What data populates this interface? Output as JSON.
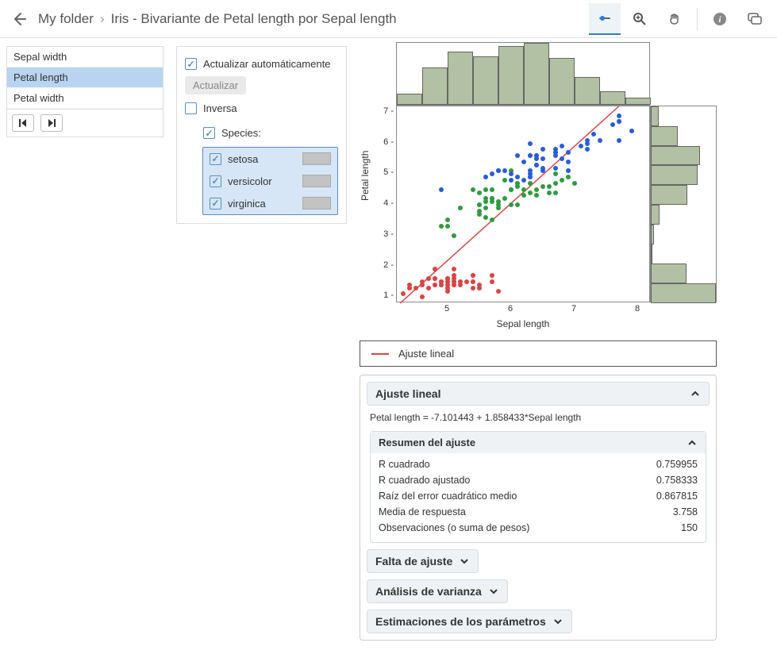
{
  "breadcrumb": {
    "folder": "My folder",
    "title": "Iris - Bivariante de Petal length por Sepal length"
  },
  "variables": {
    "items": [
      "Sepal width",
      "Petal length",
      "Petal width"
    ],
    "selected_index": 1
  },
  "options": {
    "auto_update": "Actualizar automáticamente",
    "update_btn": "Actualizar",
    "inverse": "Inversa",
    "species_label": "Species:",
    "species": [
      "setosa",
      "versicolor",
      "virginica"
    ]
  },
  "chart": {
    "type": "scatter-with-marginal-histograms",
    "xlabel": "Sepal length",
    "ylabel": "Petal length",
    "xlim": [
      4.2,
      8.2
    ],
    "ylim": [
      0.8,
      7.2
    ],
    "xticks": [
      5,
      6,
      7,
      8
    ],
    "yticks": [
      1,
      2,
      3,
      4,
      5,
      6,
      7
    ],
    "colors": {
      "setosa": "#d94545",
      "versicolor": "#2e9c3e",
      "virginica": "#2a5cd6",
      "hist_fill": "#b2c0a3",
      "fit_line": "#d94545"
    },
    "fit": {
      "slope": 1.858433,
      "intercept": -7.101443
    },
    "top_hist": {
      "bin_edges": [
        4.2,
        4.6,
        5.0,
        5.4,
        5.8,
        6.2,
        6.6,
        7.0,
        7.4,
        7.8,
        8.2
      ],
      "heights": [
        0.18,
        0.6,
        0.86,
        0.78,
        0.95,
        1.0,
        0.76,
        0.45,
        0.22,
        0.12
      ]
    },
    "right_hist": {
      "bin_edges": [
        0.8,
        1.44,
        2.08,
        2.72,
        3.36,
        4.0,
        4.64,
        5.28,
        5.92,
        6.56,
        7.2
      ],
      "heights": [
        1.0,
        0.55,
        0.02,
        0.05,
        0.14,
        0.56,
        0.72,
        0.75,
        0.42,
        0.12
      ]
    },
    "points": {
      "setosa": [
        [
          5.1,
          1.4
        ],
        [
          4.9,
          1.4
        ],
        [
          4.7,
          1.3
        ],
        [
          4.6,
          1.5
        ],
        [
          5.0,
          1.4
        ],
        [
          5.4,
          1.7
        ],
        [
          4.6,
          1.4
        ],
        [
          5.0,
          1.5
        ],
        [
          4.4,
          1.4
        ],
        [
          4.9,
          1.5
        ],
        [
          5.4,
          1.5
        ],
        [
          4.8,
          1.6
        ],
        [
          4.8,
          1.4
        ],
        [
          4.3,
          1.1
        ],
        [
          5.8,
          1.2
        ],
        [
          5.7,
          1.5
        ],
        [
          5.4,
          1.3
        ],
        [
          5.1,
          1.4
        ],
        [
          5.7,
          1.7
        ],
        [
          5.1,
          1.5
        ],
        [
          5.4,
          1.7
        ],
        [
          5.1,
          1.5
        ],
        [
          4.6,
          1.0
        ],
        [
          5.1,
          1.7
        ],
        [
          4.8,
          1.9
        ],
        [
          5.0,
          1.6
        ],
        [
          5.0,
          1.6
        ],
        [
          5.2,
          1.5
        ],
        [
          5.2,
          1.4
        ],
        [
          4.7,
          1.6
        ],
        [
          4.8,
          1.6
        ],
        [
          5.4,
          1.5
        ],
        [
          5.2,
          1.5
        ],
        [
          5.5,
          1.4
        ],
        [
          4.9,
          1.5
        ],
        [
          5.0,
          1.2
        ],
        [
          5.5,
          1.3
        ],
        [
          4.9,
          1.4
        ],
        [
          4.4,
          1.3
        ],
        [
          5.1,
          1.5
        ],
        [
          5.0,
          1.3
        ],
        [
          4.5,
          1.3
        ],
        [
          4.4,
          1.3
        ],
        [
          5.0,
          1.6
        ],
        [
          5.1,
          1.9
        ],
        [
          4.8,
          1.4
        ],
        [
          5.1,
          1.6
        ],
        [
          4.6,
          1.4
        ],
        [
          5.3,
          1.5
        ],
        [
          5.0,
          1.4
        ]
      ],
      "versicolor": [
        [
          7.0,
          4.7
        ],
        [
          6.4,
          4.5
        ],
        [
          6.9,
          4.9
        ],
        [
          5.5,
          4.0
        ],
        [
          6.5,
          4.6
        ],
        [
          5.7,
          4.5
        ],
        [
          6.3,
          4.7
        ],
        [
          4.9,
          3.3
        ],
        [
          6.6,
          4.6
        ],
        [
          5.2,
          3.9
        ],
        [
          5.0,
          3.5
        ],
        [
          5.9,
          4.2
        ],
        [
          6.0,
          4.0
        ],
        [
          6.1,
          4.7
        ],
        [
          5.6,
          3.6
        ],
        [
          6.7,
          4.4
        ],
        [
          5.6,
          4.5
        ],
        [
          5.8,
          4.1
        ],
        [
          6.2,
          4.5
        ],
        [
          5.6,
          3.9
        ],
        [
          5.9,
          4.8
        ],
        [
          6.1,
          4.0
        ],
        [
          6.3,
          4.9
        ],
        [
          6.1,
          4.7
        ],
        [
          6.4,
          4.3
        ],
        [
          6.6,
          4.4
        ],
        [
          6.8,
          4.8
        ],
        [
          6.7,
          5.0
        ],
        [
          6.0,
          4.5
        ],
        [
          5.7,
          3.5
        ],
        [
          5.5,
          3.8
        ],
        [
          5.5,
          3.7
        ],
        [
          5.8,
          3.9
        ],
        [
          6.0,
          5.1
        ],
        [
          5.4,
          4.5
        ],
        [
          6.0,
          4.5
        ],
        [
          6.7,
          4.7
        ],
        [
          6.3,
          4.4
        ],
        [
          5.6,
          4.1
        ],
        [
          5.5,
          4.0
        ],
        [
          5.5,
          4.4
        ],
        [
          6.1,
          4.6
        ],
        [
          5.8,
          4.0
        ],
        [
          5.0,
          3.3
        ],
        [
          5.6,
          4.2
        ],
        [
          5.7,
          4.2
        ],
        [
          5.7,
          4.2
        ],
        [
          6.2,
          4.3
        ],
        [
          5.1,
          3.0
        ],
        [
          5.7,
          4.1
        ]
      ],
      "virginica": [
        [
          6.3,
          6.0
        ],
        [
          5.8,
          5.1
        ],
        [
          7.1,
          5.9
        ],
        [
          6.3,
          5.6
        ],
        [
          6.5,
          5.8
        ],
        [
          7.6,
          6.6
        ],
        [
          4.9,
          4.5
        ],
        [
          7.3,
          6.3
        ],
        [
          6.7,
          5.8
        ],
        [
          7.2,
          6.1
        ],
        [
          6.5,
          5.1
        ],
        [
          6.4,
          5.3
        ],
        [
          6.8,
          5.5
        ],
        [
          5.7,
          5.0
        ],
        [
          5.8,
          5.1
        ],
        [
          6.4,
          5.3
        ],
        [
          6.5,
          5.5
        ],
        [
          7.7,
          6.7
        ],
        [
          7.7,
          6.9
        ],
        [
          6.0,
          5.0
        ],
        [
          6.9,
          5.7
        ],
        [
          5.6,
          4.9
        ],
        [
          7.7,
          6.7
        ],
        [
          6.3,
          4.9
        ],
        [
          6.7,
          5.7
        ],
        [
          7.2,
          6.0
        ],
        [
          6.2,
          4.8
        ],
        [
          6.1,
          4.9
        ],
        [
          6.4,
          5.6
        ],
        [
          7.2,
          5.8
        ],
        [
          7.4,
          6.1
        ],
        [
          7.9,
          6.4
        ],
        [
          6.4,
          5.6
        ],
        [
          6.3,
          5.1
        ],
        [
          6.1,
          5.6
        ],
        [
          7.7,
          6.1
        ],
        [
          6.3,
          5.6
        ],
        [
          6.4,
          5.5
        ],
        [
          6.0,
          4.8
        ],
        [
          6.9,
          5.4
        ],
        [
          6.7,
          5.6
        ],
        [
          6.9,
          5.1
        ],
        [
          5.8,
          5.1
        ],
        [
          6.8,
          5.9
        ],
        [
          6.7,
          5.7
        ],
        [
          6.7,
          5.2
        ],
        [
          6.3,
          5.0
        ],
        [
          6.5,
          5.2
        ],
        [
          6.2,
          5.4
        ],
        [
          5.9,
          5.1
        ]
      ]
    }
  },
  "legend": {
    "fit": "Ajuste lineal"
  },
  "results": {
    "title": "Ajuste lineal",
    "equation": "Petal length = -7.101443 + 1.858433*Sepal length",
    "summary_title": "Resumen del ajuste",
    "stats": [
      [
        "R cuadrado",
        "0.759955"
      ],
      [
        "R cuadrado ajustado",
        "0.758333"
      ],
      [
        "Raíz del error cuadrático medio",
        "0.867815"
      ],
      [
        "Media de respuesta",
        "3.758"
      ],
      [
        "Observaciones (o suma de pesos)",
        "150"
      ]
    ],
    "collapsed": [
      "Falta de ajuste",
      "Análisis de varianza",
      "Estimaciones de los parámetros"
    ]
  }
}
